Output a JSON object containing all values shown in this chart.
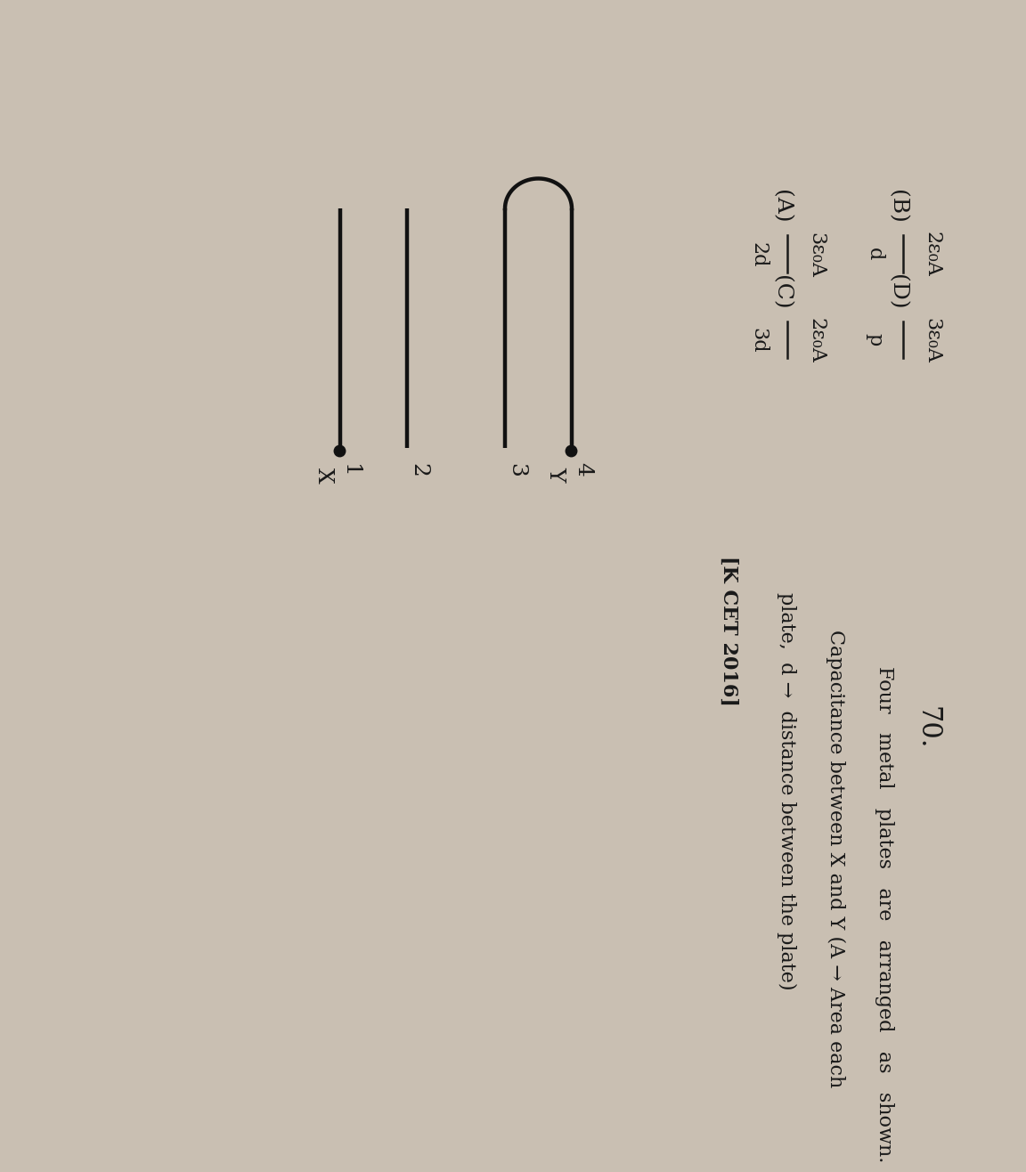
{
  "bg_color": "#c9bfb2",
  "text_color": "#1a1a1a",
  "plate_color": "#111111",
  "q_num": "70.",
  "q_line1": "Four   metal   plates   are   arranged   as   shown.",
  "q_line2": "Capacitance between X and Y (A → Area each",
  "q_line3": "plate,  d →  distance between the plate)",
  "q_source": "[K CET 2016]",
  "opt_A_label": "(A)",
  "opt_A_num": "3ε₀A",
  "opt_A_den": "2d",
  "opt_B_label": "(B)",
  "opt_B_num": "2ε₀A",
  "opt_B_den": "d",
  "opt_C_label": "(C)",
  "opt_C_num": "2ε₀A",
  "opt_C_den": "3d",
  "opt_D_label": "(D)",
  "opt_D_num": "3ε₀A",
  "opt_D_den": "p",
  "plate_labels": [
    "1",
    "2",
    "3",
    "4"
  ],
  "node_labels": [
    "X",
    "Y"
  ]
}
